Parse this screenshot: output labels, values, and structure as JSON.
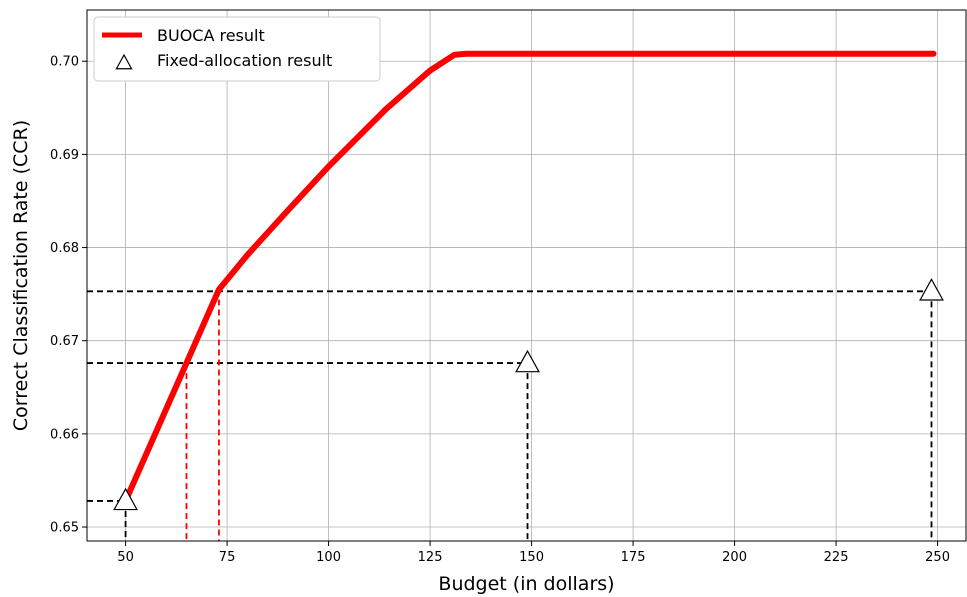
{
  "chart_data": {
    "type": "line",
    "xlabel": "Budget (in dollars)",
    "ylabel": "Correct Classification Rate (CCR)",
    "xlim": [
      40.5,
      257
    ],
    "ylim": [
      0.6485,
      0.7055
    ],
    "xticks": [
      50,
      75,
      100,
      125,
      150,
      175,
      200,
      225,
      250
    ],
    "yticks": [
      0.65,
      0.66,
      0.67,
      0.68,
      0.69,
      0.7
    ],
    "xtick_labels": [
      "50",
      "75",
      "100",
      "125",
      "150",
      "175",
      "200",
      "225",
      "250"
    ],
    "ytick_labels": [
      "0.65",
      "0.66",
      "0.67",
      "0.68",
      "0.69",
      "0.70"
    ],
    "grid": true,
    "legend_position": "top-left",
    "series": [
      {
        "name": "BUOCA result",
        "kind": "line",
        "color": "#ff0000",
        "x": [
          50,
          65,
          73,
          80,
          90,
          100,
          114,
          125,
          131,
          134,
          249
        ],
        "y": [
          0.6528,
          0.6676,
          0.6755,
          0.6792,
          0.684,
          0.6887,
          0.6948,
          0.699,
          0.7007,
          0.7008,
          0.7008
        ]
      },
      {
        "name": "Fixed-allocation result",
        "kind": "marker",
        "marker": "triangle",
        "x": [
          50,
          149,
          248.5
        ],
        "y": [
          0.6528,
          0.6676,
          0.6753
        ]
      }
    ],
    "reference_lines": {
      "black_dashed": [
        {
          "x": 50,
          "y": 0.6528
        },
        {
          "x": 149,
          "y": 0.6676
        },
        {
          "x": 248.5,
          "y": 0.6753
        }
      ],
      "red_dashed": [
        {
          "x": 65,
          "y": 0.6676
        },
        {
          "x": 73,
          "y": 0.6755
        }
      ]
    }
  }
}
